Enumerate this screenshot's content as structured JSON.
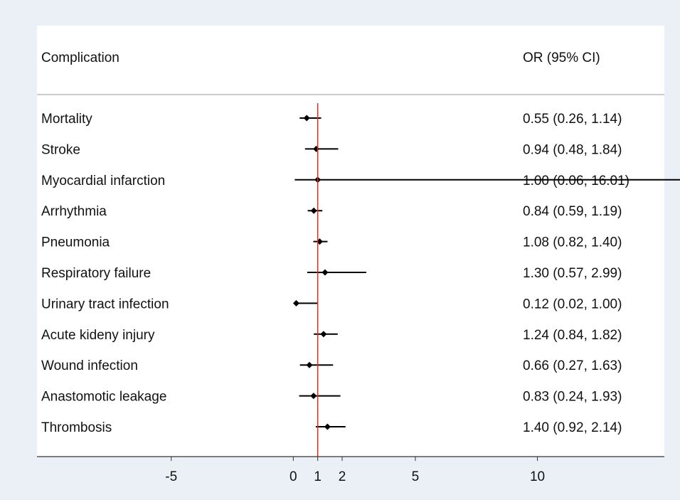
{
  "chart_data": {
    "type": "forest",
    "headers": {
      "label": "Complication",
      "estimate": "OR (95% CI)"
    },
    "null_value": 1,
    "x_ticks": [
      -5,
      0,
      1,
      2,
      5,
      10
    ],
    "x_range": [
      -10.5,
      15.2
    ],
    "grid": false,
    "rows": [
      {
        "label": "Mortality",
        "or": 0.55,
        "lo": 0.26,
        "hi": 1.14,
        "text": "0.55 (0.26, 1.14)"
      },
      {
        "label": "Stroke",
        "or": 0.94,
        "lo": 0.48,
        "hi": 1.84,
        "text": "0.94 (0.48, 1.84)"
      },
      {
        "label": "Myocardial infarction",
        "or": 1.0,
        "lo": 0.06,
        "hi": 16.01,
        "text": "1.00 (0.06, 16.01)"
      },
      {
        "label": "Arrhythmia",
        "or": 0.84,
        "lo": 0.59,
        "hi": 1.19,
        "text": "0.84 (0.59, 1.19)"
      },
      {
        "label": "Pneumonia",
        "or": 1.08,
        "lo": 0.82,
        "hi": 1.4,
        "text": "1.08 (0.82, 1.40)"
      },
      {
        "label": "Respiratory failure",
        "or": 1.3,
        "lo": 0.57,
        "hi": 2.99,
        "text": "1.30 (0.57, 2.99)"
      },
      {
        "label": "Urinary tract infection",
        "or": 0.12,
        "lo": 0.02,
        "hi": 1.0,
        "text": "0.12 (0.02, 1.00)"
      },
      {
        "label": "Acute kideny injury",
        "or": 1.24,
        "lo": 0.84,
        "hi": 1.82,
        "text": "1.24 (0.84, 1.82)"
      },
      {
        "label": "Wound infection",
        "or": 0.66,
        "lo": 0.27,
        "hi": 1.63,
        "text": "0.66 (0.27, 1.63)"
      },
      {
        "label": "Anastomotic leakage",
        "or": 0.83,
        "lo": 0.24,
        "hi": 1.93,
        "text": "0.83 (0.24, 1.93)"
      },
      {
        "label": "Thrombosis",
        "or": 1.4,
        "lo": 0.92,
        "hi": 2.14,
        "text": "1.40 (0.92, 2.14)"
      }
    ],
    "colors": {
      "background": "#eaf0f5",
      "panel": "#ffffff",
      "reference_line": "#c0392b",
      "marker": "#000000",
      "divider": "#999999"
    }
  }
}
